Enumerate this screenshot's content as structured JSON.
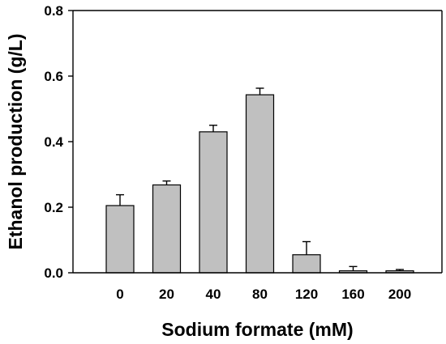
{
  "chart_data": {
    "type": "bar",
    "title": "",
    "xlabel": "Sodium formate (mM)",
    "ylabel": "Ethanol production (g/L)",
    "categories": [
      "0",
      "20",
      "40",
      "80",
      "120",
      "160",
      "200"
    ],
    "values": [
      0.205,
      0.268,
      0.43,
      0.543,
      0.055,
      0.006,
      0.006
    ],
    "error_upper": [
      0.033,
      0.012,
      0.02,
      0.02,
      0.04,
      0.013,
      0.004
    ],
    "ylim": [
      0,
      0.8
    ],
    "yticks": [
      "0.0",
      "0.2",
      "0.4",
      "0.6",
      "0.8"
    ],
    "grid": false,
    "bar_color": "#c0c0c0",
    "bar_edge_color": "#000000"
  }
}
